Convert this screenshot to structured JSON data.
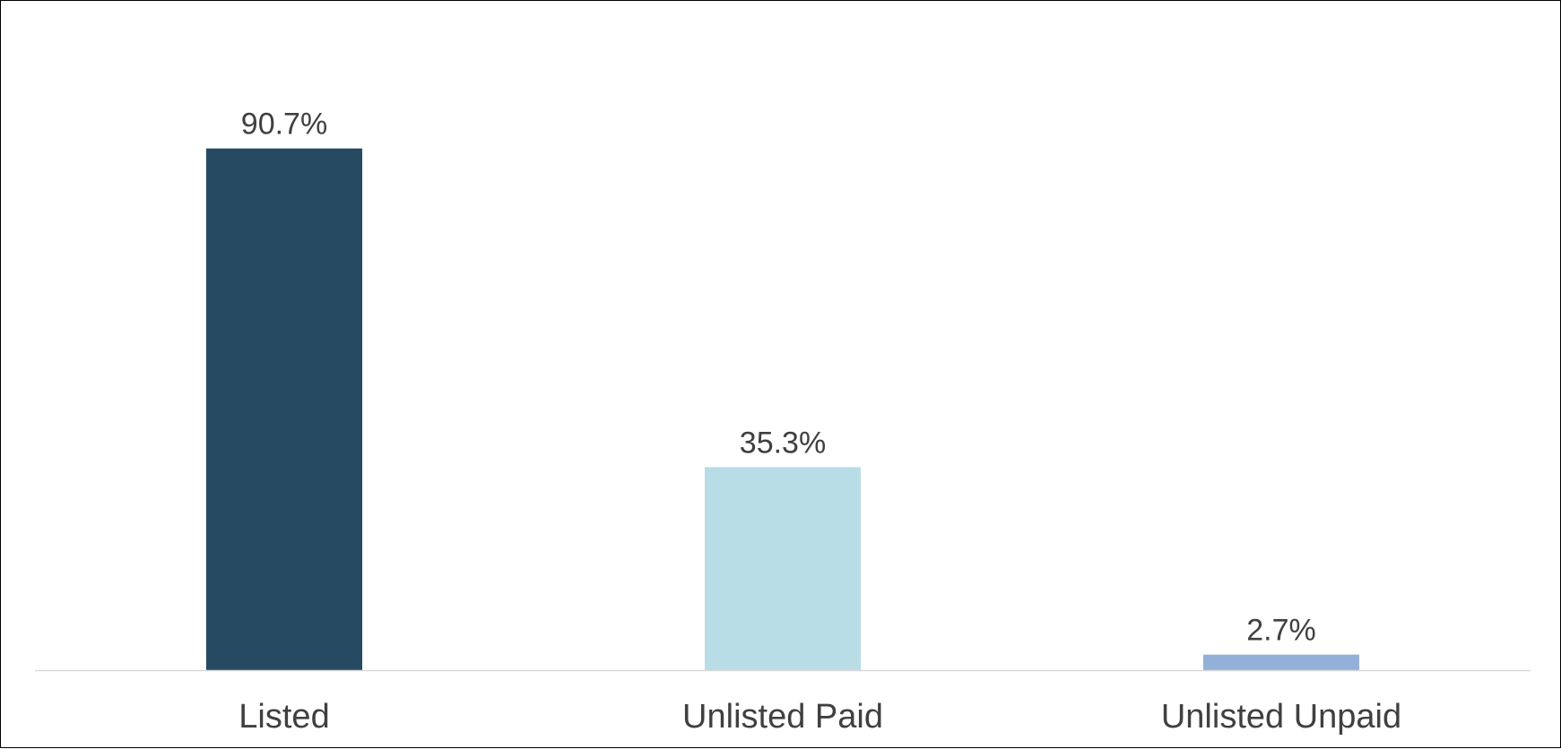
{
  "chart_data": {
    "type": "bar",
    "categories": [
      "Listed",
      "Unlisted Paid",
      "Unlisted Unpaid"
    ],
    "values": [
      90.7,
      35.3,
      2.7
    ],
    "data_labels": [
      "90.7%",
      "35.3%",
      "2.7%"
    ],
    "colors": [
      "#264a62",
      "#b8dde7",
      "#93b1d8"
    ],
    "axis_color": "#d9d9d9",
    "title": "",
    "xlabel": "",
    "ylabel": "",
    "ylim": [
      0,
      100
    ],
    "grid": false,
    "legend": "none"
  }
}
